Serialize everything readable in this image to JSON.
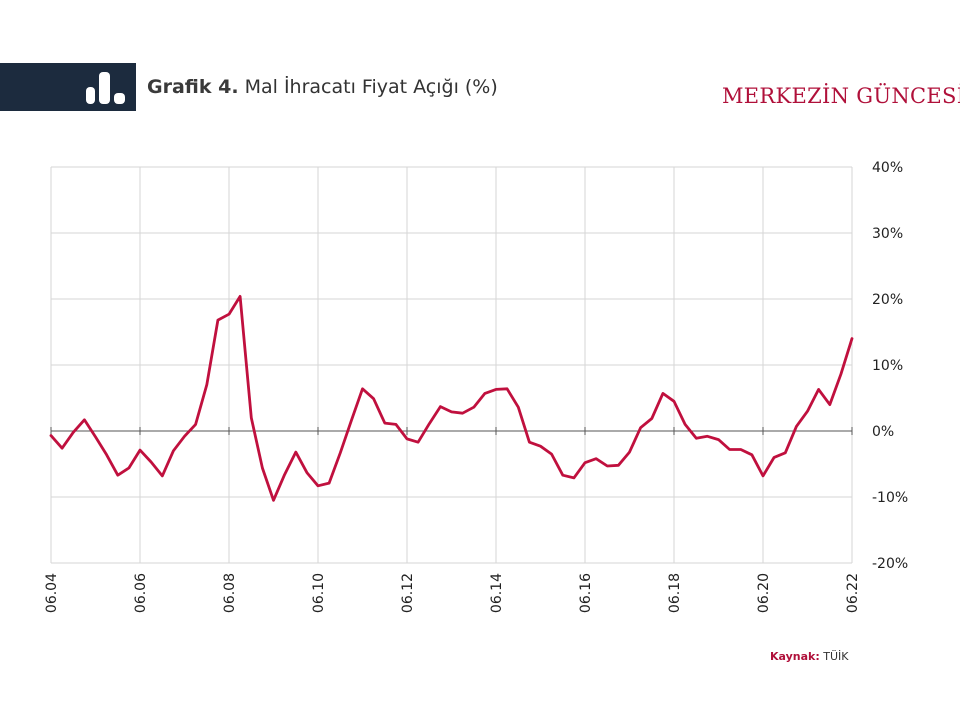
{
  "header": {
    "title_bold": "Grafik 4.",
    "title_rest": " Mal İhracatı Fiyat Açığı (%)",
    "brand": "MERKEZİN GÜNCESİ"
  },
  "source": {
    "label": "Kaynak:",
    "value": "TÜİK"
  },
  "colors": {
    "line": "#c0103e",
    "header_bg": "#1c2b3e",
    "grid": "#d6d6d6"
  },
  "chart_data": {
    "type": "line",
    "title": "Grafik 4. Mal İhracatı Fiyat Açığı (%)",
    "xlabel": "",
    "ylabel": "",
    "ylim": [
      -20,
      40
    ],
    "y_ticks": [
      40,
      30,
      20,
      10,
      0,
      -10,
      -20
    ],
    "y_tick_labels": [
      "40%",
      "30%",
      "20%",
      "10%",
      "0%",
      "-10%",
      "-20%"
    ],
    "x_range": [
      "06.04",
      "06.22"
    ],
    "x_tick_labels": [
      "06.04",
      "06.06",
      "06.08",
      "06.10",
      "06.12",
      "06.14",
      "06.16",
      "06.18",
      "06.20",
      "06.22"
    ],
    "grid": true,
    "series": [
      {
        "x": [
          "06.04",
          "09.04",
          "12.04",
          "03.05",
          "06.05",
          "09.05",
          "12.05",
          "03.06",
          "06.06",
          "09.06",
          "12.06",
          "03.07",
          "06.07",
          "09.07",
          "12.07",
          "03.08",
          "06.08",
          "09.08",
          "12.08",
          "03.09",
          "06.09",
          "09.09",
          "12.09",
          "03.10",
          "06.10",
          "09.10",
          "12.10",
          "03.11",
          "06.11",
          "09.11",
          "12.11",
          "03.12",
          "06.12",
          "09.12",
          "12.12",
          "03.13",
          "06.13",
          "09.13",
          "12.13",
          "03.14",
          "06.14",
          "09.14",
          "12.14",
          "03.15",
          "06.15",
          "09.15",
          "12.15",
          "03.16",
          "06.16",
          "09.16",
          "12.16",
          "03.17",
          "06.17",
          "09.17",
          "12.17",
          "03.18",
          "06.18",
          "09.18",
          "12.18",
          "03.19",
          "06.19",
          "09.19",
          "12.19",
          "03.20",
          "06.20",
          "09.20",
          "12.20",
          "03.21",
          "06.21",
          "09.21",
          "12.21",
          "03.22",
          "06.22"
        ],
        "values": [
          -0.7,
          -2.6,
          -0.2,
          1.7,
          -0.9,
          -3.6,
          -6.7,
          -5.6,
          -2.9,
          -4.7,
          -6.8,
          -3.0,
          -0.8,
          1.0,
          7.0,
          16.8,
          17.7,
          20.4,
          2.0,
          -5.6,
          -10.5,
          -6.6,
          -3.2,
          -6.3,
          -8.3,
          -7.9,
          -3.3,
          1.6,
          6.4,
          4.9,
          1.2,
          1.0,
          -1.2,
          -1.7,
          1.1,
          3.7,
          2.9,
          2.7,
          3.6,
          5.7,
          6.3,
          6.4,
          3.6,
          -1.7,
          -2.3,
          -3.5,
          -6.7,
          -7.1,
          -4.8,
          -4.2,
          -5.3,
          -5.2,
          -3.2,
          0.5,
          1.9,
          5.7,
          4.5,
          1.0,
          -1.1,
          -0.8,
          -1.3,
          -2.8,
          -2.8,
          -3.6,
          -6.8,
          -4.0,
          -3.3,
          0.7,
          3.0,
          6.3,
          4.0,
          8.6,
          14.0
        ]
      }
    ]
  }
}
